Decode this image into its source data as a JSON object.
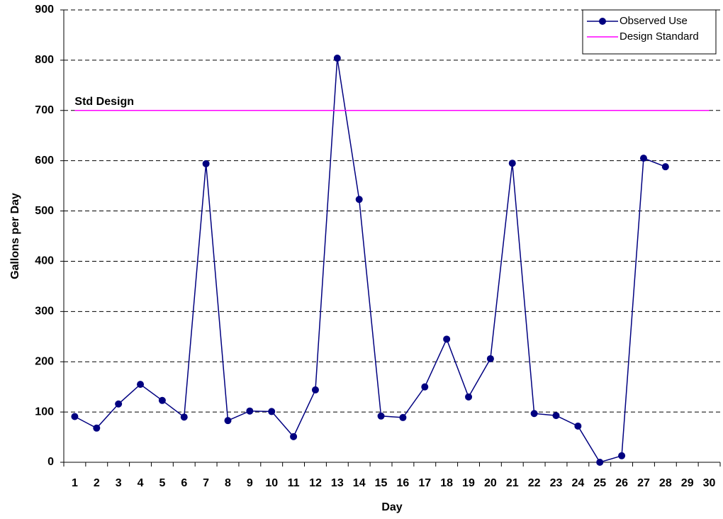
{
  "chart_data": {
    "type": "line",
    "ylabel": "Gallons per Day",
    "xlabel": "Day",
    "categories": [
      1,
      2,
      3,
      4,
      5,
      6,
      7,
      8,
      9,
      10,
      11,
      12,
      13,
      14,
      15,
      16,
      17,
      18,
      19,
      20,
      21,
      22,
      23,
      24,
      25,
      26,
      27,
      28,
      29,
      30
    ],
    "series": [
      {
        "name": "Observed Use",
        "color": "#000080",
        "markers": true,
        "values": [
          91,
          68,
          116,
          155,
          123,
          90,
          594,
          83,
          102,
          101,
          51,
          144,
          804,
          523,
          92,
          89,
          150,
          245,
          130,
          206,
          595,
          97,
          93,
          72,
          0,
          13,
          605,
          588,
          null,
          null
        ]
      },
      {
        "name": "Design Standard",
        "color": "#ff00ff",
        "markers": false,
        "values": [
          700,
          700,
          700,
          700,
          700,
          700,
          700,
          700,
          700,
          700,
          700,
          700,
          700,
          700,
          700,
          700,
          700,
          700,
          700,
          700,
          700,
          700,
          700,
          700,
          700,
          700,
          700,
          700,
          700,
          700
        ]
      }
    ],
    "annotations": [
      {
        "text": "Std Design",
        "value": 700
      }
    ],
    "ylim": [
      0,
      900
    ],
    "yticks": [
      0,
      100,
      200,
      300,
      400,
      500,
      600,
      700,
      800,
      900
    ],
    "grid": true,
    "legend": "top-right"
  }
}
